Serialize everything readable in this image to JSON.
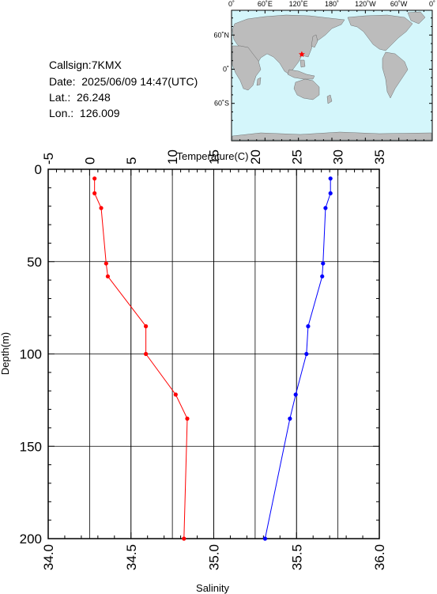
{
  "info": {
    "callsign": "Callsign:7KMX",
    "date": "Date:  2025/06/09 14:47(UTC)",
    "lat": "Lat.:  26.248",
    "lon": "Lon.:  126.009"
  },
  "map": {
    "ocean_color": "#d4f6fb",
    "land_color": "#bcbcbc",
    "marker_color": "#ff0000",
    "top_ticks": [
      "0˚",
      "60˚E",
      "120˚E",
      "180˚",
      "120˚W",
      "60˚W",
      "0˚"
    ],
    "left_ticks": [
      "60˚N",
      "0˚",
      "60˚S"
    ],
    "station": {
      "lat": 26.248,
      "lon": 126.009
    }
  },
  "chart_data": {
    "type": "line",
    "x_top_label": "Temperature(C)",
    "x_bottom_label": "Salinity",
    "y_label": "Depth(m)",
    "temperature_range": [
      -5,
      35
    ],
    "salinity_range": [
      34.0,
      36.0
    ],
    "depth_range": [
      0,
      200
    ],
    "temperature_ticks": [
      "-5",
      "0",
      "5",
      "10",
      "15",
      "20",
      "25",
      "30",
      "35"
    ],
    "salinity_ticks": [
      "34.0",
      "34.5",
      "35.0",
      "35.5",
      "36.0"
    ],
    "depth_ticks": [
      "0",
      "50",
      "100",
      "150",
      "200"
    ],
    "grid": true,
    "series": [
      {
        "quantity": "salinity",
        "color": "#ff0000",
        "points": [
          {
            "depth": 5,
            "value": 34.28
          },
          {
            "depth": 13,
            "value": 34.28
          },
          {
            "depth": 21,
            "value": 34.32
          },
          {
            "depth": 51,
            "value": 34.35
          },
          {
            "depth": 58,
            "value": 34.36
          },
          {
            "depth": 85,
            "value": 34.59
          },
          {
            "depth": 100,
            "value": 34.59
          },
          {
            "depth": 122,
            "value": 34.77
          },
          {
            "depth": 135,
            "value": 34.84
          },
          {
            "depth": 200,
            "value": 34.82
          }
        ]
      },
      {
        "quantity": "temperature",
        "color": "#0000ff",
        "points": [
          {
            "depth": 5,
            "value": 29.1
          },
          {
            "depth": 13,
            "value": 29.1
          },
          {
            "depth": 21,
            "value": 28.5
          },
          {
            "depth": 51,
            "value": 28.2
          },
          {
            "depth": 58,
            "value": 28.1
          },
          {
            "depth": 85,
            "value": 26.4
          },
          {
            "depth": 100,
            "value": 26.2
          },
          {
            "depth": 122,
            "value": 24.9
          },
          {
            "depth": 135,
            "value": 24.2
          },
          {
            "depth": 200,
            "value": 21.2
          }
        ]
      }
    ]
  }
}
